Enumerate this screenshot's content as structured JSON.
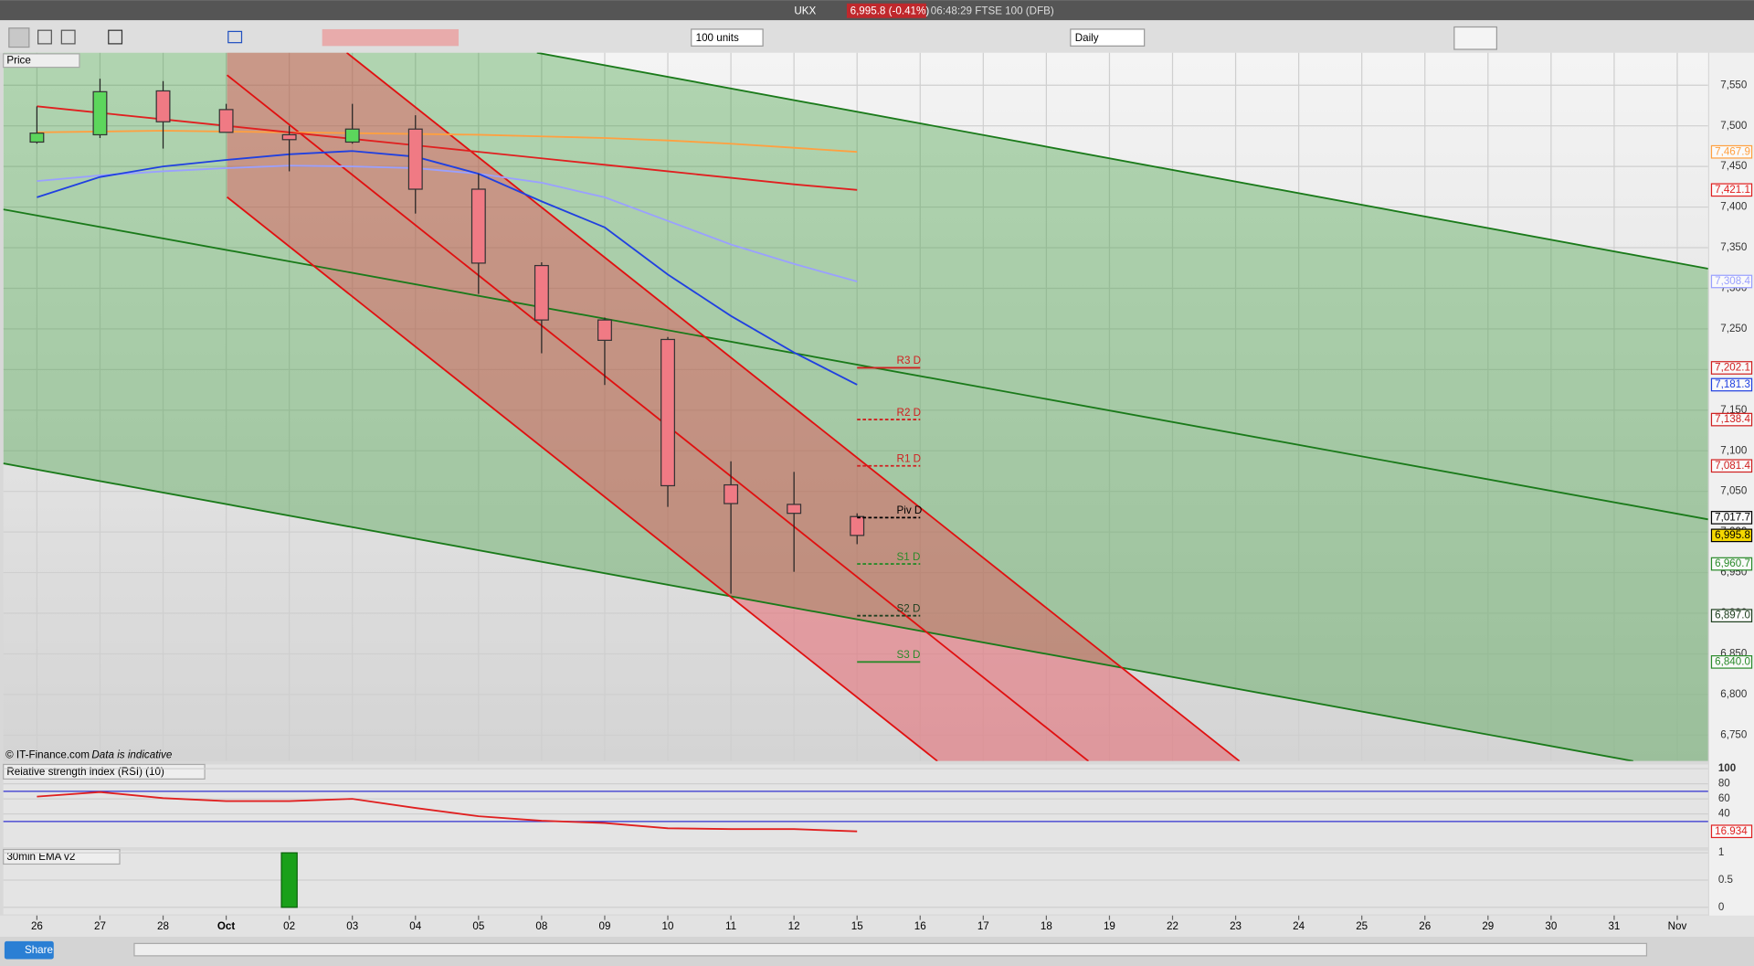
{
  "header": {
    "symbol": "UKX",
    "quote": "6,995.8 (-0.41%)",
    "time_name": "06:48:29 FTSE 100 (DFB)"
  },
  "toolbar": {
    "units": "100 units",
    "period": "Daily"
  },
  "footer": {
    "share": "Share"
  },
  "chart_data": {
    "type": "candlestick",
    "title": "Price",
    "footnote": "© IT-Finance.com",
    "footnote_note": "Data is indicative",
    "categories": [
      "26",
      "27",
      "28",
      "Oct",
      "02",
      "03",
      "04",
      "05",
      "08",
      "09",
      "10",
      "11",
      "12",
      "15"
    ],
    "future_categories": [
      "16",
      "17",
      "18",
      "19",
      "22",
      "23",
      "24",
      "25",
      "26",
      "29",
      "30",
      "31",
      "Nov"
    ],
    "open": [
      7480,
      7489,
      7543,
      7520,
      7489,
      7480,
      7496,
      7422,
      7328,
      7261,
      7237,
      7058,
      7034,
      7019
    ],
    "high": [
      7524,
      7558,
      7555,
      7527,
      7500,
      7527,
      7513,
      7441,
      7332,
      7264,
      7240,
      7087,
      7074,
      7023
    ],
    "low": [
      7478,
      7485,
      7472,
      7492,
      7444,
      7478,
      7392,
      7293,
      7220,
      7181,
      7031,
      6924,
      6951,
      6985
    ],
    "close": [
      7491,
      7542,
      7505,
      7492,
      7483,
      7496,
      7422,
      7331,
      7261,
      7236,
      7057,
      7035,
      7023,
      6995.8
    ],
    "last_label": "6,995.8",
    "up_color": "#5cd65c",
    "down_color": "#f07a84",
    "ylim": [
      6718,
      7590
    ],
    "yticks": [
      {
        "value": 7550,
        "label": "7,550"
      },
      {
        "value": 7500,
        "label": "7,500"
      },
      {
        "value": 7450,
        "label": "7,450"
      },
      {
        "value": 7400,
        "label": "7,400"
      },
      {
        "value": 7350,
        "label": "7,350"
      },
      {
        "value": 7300,
        "label": "7,300"
      },
      {
        "value": 7250,
        "label": "7,250"
      },
      {
        "value": 7200,
        "label": "7,200"
      },
      {
        "value": 7150,
        "label": "7,150"
      },
      {
        "value": 7100,
        "label": "7,100"
      },
      {
        "value": 7050,
        "label": "7,050"
      },
      {
        "value": 7000,
        "label": "7,000"
      },
      {
        "value": 6950,
        "label": "6,950"
      },
      {
        "value": 6900,
        "label": "6,900"
      },
      {
        "value": 6850,
        "label": "6,850"
      },
      {
        "value": 6800,
        "label": "6,800"
      },
      {
        "value": 6750,
        "label": "6,750"
      }
    ],
    "grid": true,
    "moving_averages": [
      {
        "color": "#ffa040",
        "values": [
          7492,
          7493,
          7494,
          7493,
          7492,
          7491,
          7490,
          7489,
          7487,
          7485,
          7482,
          7478,
          7473,
          7467.9
        ],
        "last_label": "7,467.9"
      },
      {
        "color": "#e02020",
        "values": [
          7524,
          7516,
          7508,
          7500,
          7492,
          7484,
          7476,
          7468,
          7460,
          7452,
          7444,
          7436,
          7428,
          7421.1
        ],
        "last_label": "7,421.1"
      },
      {
        "color": "#9aa0ff",
        "values": [
          7432,
          7439,
          7444,
          7448,
          7451,
          7450,
          7448,
          7441,
          7430,
          7412,
          7383,
          7354,
          7330,
          7308.4
        ],
        "last_label": "7,308.4"
      },
      {
        "color": "#2040e0",
        "values": [
          7412,
          7437,
          7450,
          7458,
          7465,
          7469,
          7462,
          7441,
          7407,
          7375,
          7317,
          7266,
          7221,
          7181.3
        ],
        "last_label": "7,181.3"
      }
    ],
    "pivots": [
      {
        "name": "R3 D",
        "value": 7202.1,
        "label": "7,202.1",
        "color": "#d02020",
        "dashed": false
      },
      {
        "name": "R2 D",
        "value": 7138.4,
        "label": "7,138.4",
        "color": "#d02020",
        "dashed": true
      },
      {
        "name": "R1 D",
        "value": 7081.4,
        "label": "7,081.4",
        "color": "#d02020",
        "dashed": true
      },
      {
        "name": "Piv D",
        "value": 7017.7,
        "label": "7,017.7",
        "color": "#000000",
        "dashed": true
      },
      {
        "name": "S1 D",
        "value": 6960.7,
        "label": "6,960.7",
        "color": "#2a8a2a",
        "dashed": true
      },
      {
        "name": "S2 D",
        "value": 6897.0,
        "label": "6,897.0",
        "color": "#204020",
        "dashed": true
      },
      {
        "name": "S3 D",
        "value": 6840.0,
        "label": "6,840.0",
        "color": "#2a8a2a",
        "dashed": false
      }
    ],
    "rsi": {
      "title": "Relative strength index (RSI) (10)",
      "color": "#e02020",
      "values": [
        63,
        69,
        61,
        57,
        57,
        60,
        48,
        37,
        31,
        28,
        21,
        20,
        20,
        16.934
      ],
      "last_label": "16.934",
      "ylim": [
        0,
        100
      ],
      "yticks": [
        100,
        80,
        60,
        40
      ],
      "bands": [
        30,
        70
      ]
    },
    "ema": {
      "title": "30min EMA v2",
      "color": "#1aa01a",
      "values": [
        0,
        0,
        0,
        0,
        1,
        0,
        0,
        0,
        0,
        0,
        0,
        0,
        0,
        0
      ],
      "ylim": [
        -0.13,
        1.04
      ],
      "yticks": [
        1,
        0.5,
        0
      ]
    }
  }
}
